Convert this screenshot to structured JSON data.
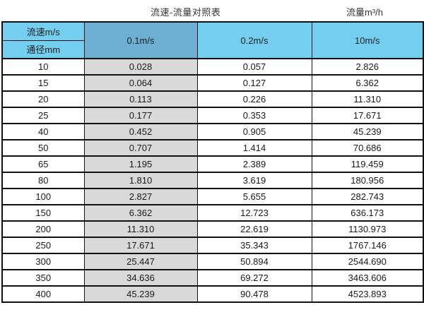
{
  "titles": {
    "main": "流速-流量对照表",
    "unit": "流量m³/h"
  },
  "table": {
    "corner_top": "流速m/s",
    "corner_bottom": "通径mm",
    "velocity_columns": [
      "0.1m/s",
      "0.2m/s",
      "10m/s"
    ],
    "rows": [
      [
        "10",
        "0.028",
        "0.057",
        "2.826"
      ],
      [
        "15",
        "0.064",
        "0.127",
        "6.362"
      ],
      [
        "20",
        "0.113",
        "0.226",
        "11.310"
      ],
      [
        "25",
        "0.177",
        "0.353",
        "17.671"
      ],
      [
        "40",
        "0.452",
        "0.905",
        "45.239"
      ],
      [
        "50",
        "0.707",
        "1.414",
        "70.686"
      ],
      [
        "65",
        "1.195",
        "2.389",
        "119.459"
      ],
      [
        "80",
        "1.810",
        "3.619",
        "180.956"
      ],
      [
        "100",
        "2.827",
        "5.655",
        "282.743"
      ],
      [
        "150",
        "6.362",
        "12.723",
        "636.173"
      ],
      [
        "200",
        "11.310",
        "22.619",
        "1130.973"
      ],
      [
        "250",
        "17.671",
        "35.343",
        "1767.146"
      ],
      [
        "300",
        "25.447",
        "50.894",
        "2544.690"
      ],
      [
        "350",
        "34.636",
        "69.272",
        "3463.606"
      ],
      [
        "400",
        "45.239",
        "90.478",
        "4523.893"
      ]
    ]
  },
  "colors": {
    "header_light_blue": "#74CEF0",
    "header_dark_blue": "#6CAFD0",
    "highlight_column_gray": "#D9D9D9",
    "border_black": "#111111",
    "title_text": "#333333"
  },
  "chart_data": {
    "type": "table",
    "title": "流速-流量对照表",
    "unit_label": "流量m³/h",
    "row_header": "通径mm",
    "column_header": "流速m/s",
    "columns": [
      "0.1m/s",
      "0.2m/s",
      "10m/s"
    ],
    "diameters_mm": [
      10,
      15,
      20,
      25,
      40,
      50,
      65,
      80,
      100,
      150,
      200,
      250,
      300,
      350,
      400
    ],
    "series": [
      {
        "name": "0.1m/s",
        "values": [
          0.028,
          0.064,
          0.113,
          0.177,
          0.452,
          0.707,
          1.195,
          1.81,
          2.827,
          6.362,
          11.31,
          17.671,
          25.447,
          34.636,
          45.239
        ]
      },
      {
        "name": "0.2m/s",
        "values": [
          0.057,
          0.127,
          0.226,
          0.353,
          0.905,
          1.414,
          2.389,
          3.619,
          5.655,
          12.723,
          22.619,
          35.343,
          50.894,
          69.272,
          90.478
        ]
      },
      {
        "name": "10m/s",
        "values": [
          2.826,
          6.362,
          11.31,
          17.671,
          45.239,
          70.686,
          119.459,
          180.956,
          282.743,
          636.173,
          1130.973,
          1767.146,
          2544.69,
          3463.606,
          4523.893
        ]
      }
    ]
  }
}
